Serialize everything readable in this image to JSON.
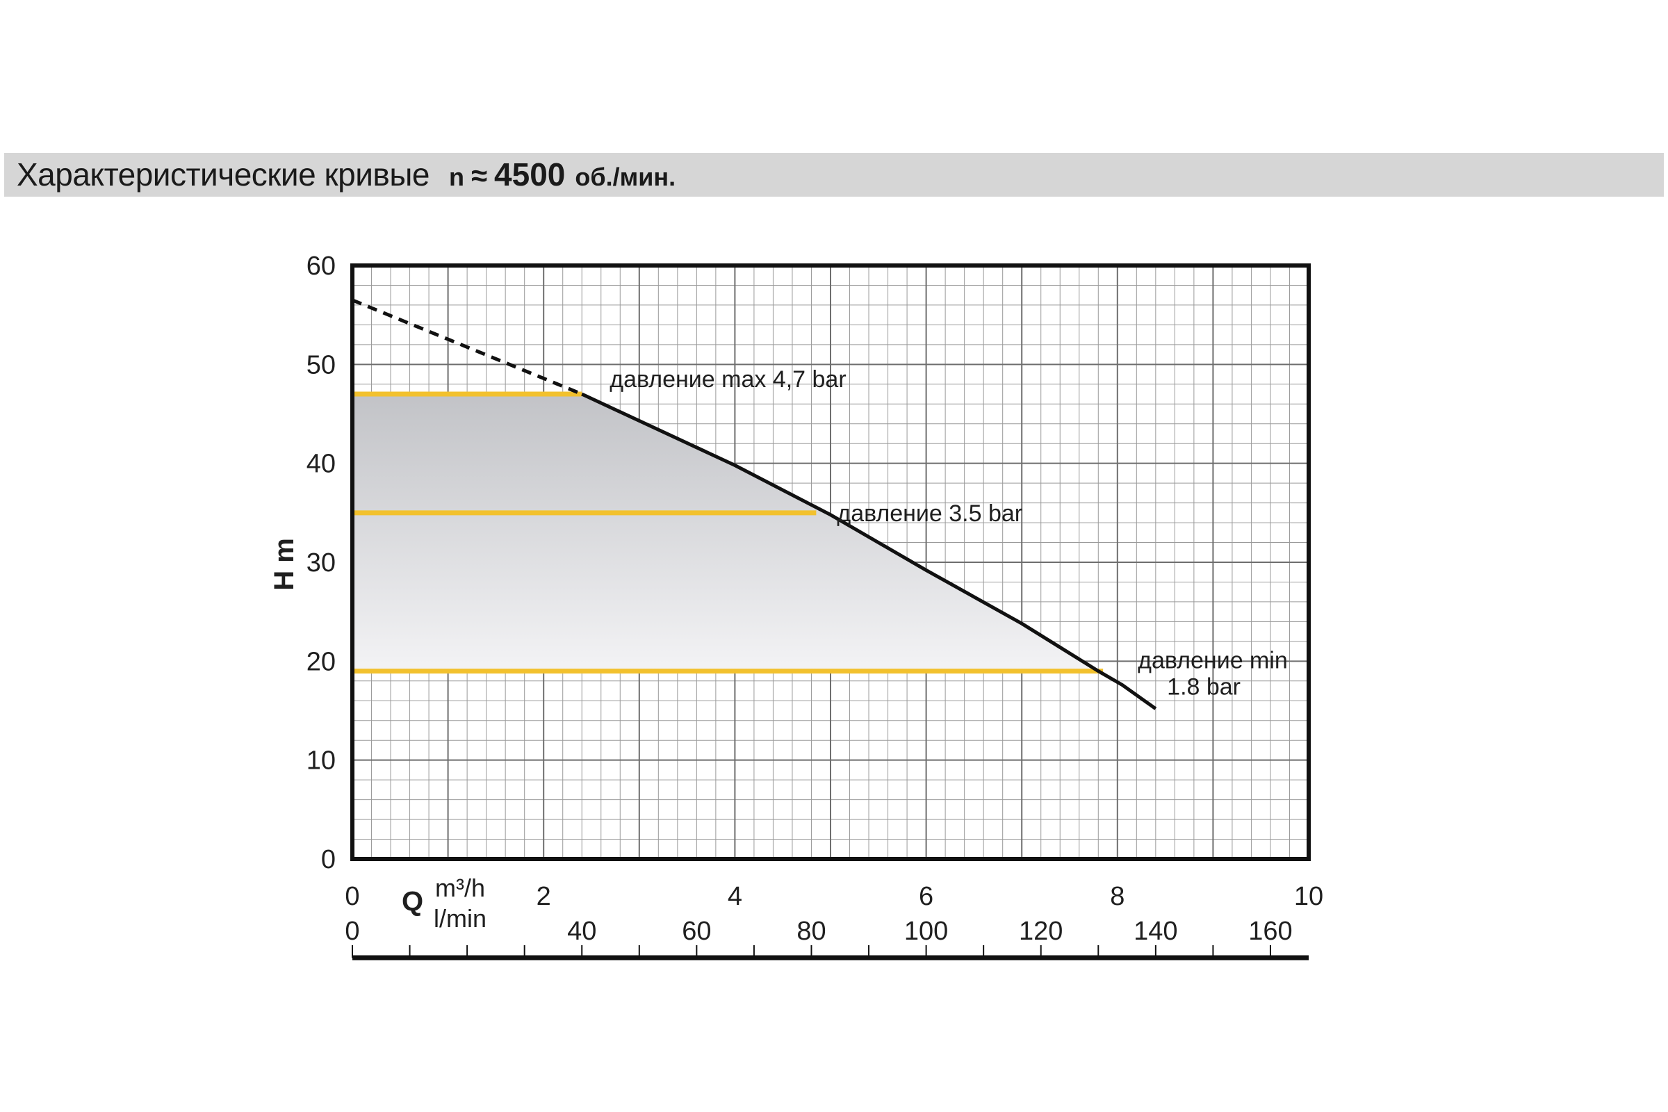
{
  "header": {
    "title": "Характеристические кривые",
    "speed_symbol": "n",
    "approx": "≈",
    "speed_value": "4500",
    "speed_unit": "об./мин."
  },
  "chart_data": {
    "type": "line",
    "title": "",
    "ylabel": "H m",
    "ylim": [
      0,
      60
    ],
    "yticks": [
      0,
      10,
      20,
      30,
      40,
      50,
      60
    ],
    "xlim": [
      0,
      10
    ],
    "xticks": [
      0,
      2,
      4,
      6,
      8,
      10
    ],
    "x_unit_primary": "m³/h",
    "x_axis_symbol": "Q",
    "x_secondary": {
      "unit": "l/min",
      "tick_labels": [
        0,
        40,
        60,
        80,
        100,
        120,
        140,
        160
      ],
      "tick_values_m3h": [
        0,
        2.4,
        3.6,
        4.8,
        6.0,
        7.2,
        8.4,
        9.6
      ]
    },
    "grid": true,
    "curve": {
      "dashed_segment": [
        [
          0,
          56.5
        ],
        [
          2.4,
          47
        ]
      ],
      "solid_segment": [
        [
          2.4,
          47
        ],
        [
          4.0,
          39.8
        ],
        [
          5.0,
          34.8
        ],
        [
          6.0,
          29.2
        ],
        [
          7.0,
          23.8
        ],
        [
          7.8,
          19.0
        ],
        [
          8.05,
          17.6
        ],
        [
          8.4,
          15.2
        ]
      ]
    },
    "pressure_lines": [
      {
        "label": "давление max 4,7 bar",
        "H": 47,
        "x_end": 2.4
      },
      {
        "label": "давление 3.5 bar",
        "H": 35,
        "x_end": 4.85
      },
      {
        "label": "давление min",
        "label2": "1.8 bar",
        "H": 19,
        "x_end": 7.85
      }
    ],
    "colors": {
      "curve": "#111111",
      "pressure_line": "#f2c12e",
      "grid": "#8c8c8c",
      "fill_top": "#c2c3c7",
      "fill_bottom": "#f3f3f5"
    }
  }
}
